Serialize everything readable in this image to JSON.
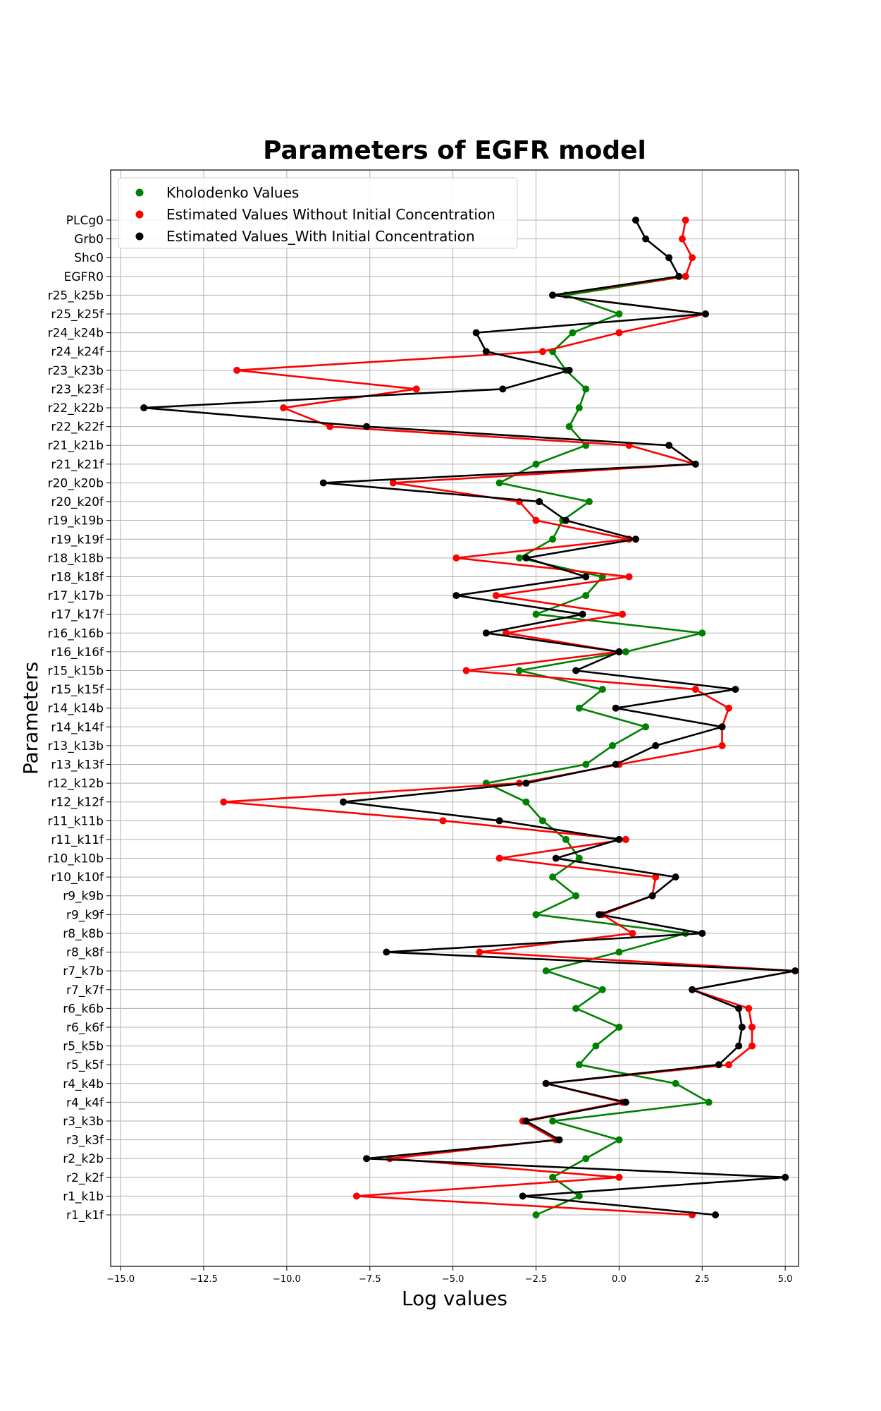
{
  "chart_data": {
    "type": "line",
    "title": "Parameters of EGFR model",
    "xlabel": "Log values",
    "ylabel": "Parameters",
    "xlim": [
      -15.3,
      5.4
    ],
    "xticks": [
      -15.0,
      -12.5,
      -10.0,
      -7.5,
      -5.0,
      -2.5,
      0.0,
      2.5,
      5.0
    ],
    "xtick_labels": [
      "−15.0",
      "−12.5",
      "−10.0",
      "−7.5",
      "−5.0",
      "−2.5",
      "0.0",
      "2.5",
      "5.0"
    ],
    "grid": true,
    "legend_position": "top-left",
    "categories": [
      "r1_k1f",
      "r1_k1b",
      "r2_k2f",
      "r2_k2b",
      "r3_k3f",
      "r3_k3b",
      "r4_k4f",
      "r4_k4b",
      "r5_k5f",
      "r5_k5b",
      "r6_k6f",
      "r6_k6b",
      "r7_k7f",
      "r7_k7b",
      "r8_k8f",
      "r8_k8b",
      "r9_k9f",
      "r9_k9b",
      "r10_k10f",
      "r10_k10b",
      "r11_k11f",
      "r11_k11b",
      "r12_k12f",
      "r12_k12b",
      "r13_k13f",
      "r13_k13b",
      "r14_k14f",
      "r14_k14b",
      "r15_k15f",
      "r15_k15b",
      "r16_k16f",
      "r16_k16b",
      "r17_k17f",
      "r17_k17b",
      "r18_k18f",
      "r18_k18b",
      "r19_k19f",
      "r19_k19b",
      "r20_k20f",
      "r20_k20b",
      "r21_k21f",
      "r21_k21b",
      "r22_k22f",
      "r22_k22b",
      "r23_k23f",
      "r23_k23b",
      "r24_k24f",
      "r24_k24b",
      "r25_k25f",
      "r25_k25b",
      "EGFR0",
      "Shc0",
      "Grb0",
      "PLCg0"
    ],
    "series": [
      {
        "name": "Kholodenko Values",
        "color": "#008000",
        "values": [
          -2.5,
          -1.2,
          -2.0,
          -1.0,
          0.0,
          -2.0,
          2.7,
          1.7,
          -1.2,
          -0.7,
          0.0,
          -1.3,
          -0.5,
          -2.2,
          0.0,
          2.0,
          -2.5,
          -1.3,
          -2.0,
          -1.2,
          -1.6,
          -2.3,
          -2.8,
          -4.0,
          -1.0,
          -0.2,
          0.8,
          -1.2,
          -0.5,
          -3.0,
          0.2,
          2.5,
          -2.5,
          -1.0,
          -0.5,
          -3.0,
          -2.0,
          -1.7,
          -0.9,
          -3.6,
          -2.5,
          -1.0,
          -1.5,
          -1.2,
          -1.0,
          -1.6,
          -2.0,
          -1.4,
          0.0,
          -1.6,
          2.0,
          null,
          null,
          null
        ]
      },
      {
        "name": "Estimated Values Without Initial Concentration",
        "color": "#ff0000",
        "values": [
          2.2,
          -7.9,
          0.0,
          -6.9,
          -1.9,
          -2.9,
          0.1,
          -2.2,
          3.3,
          4.0,
          4.0,
          3.9,
          2.2,
          5.3,
          -4.2,
          0.4,
          -0.5,
          1.0,
          1.1,
          -3.6,
          0.2,
          -5.3,
          -11.9,
          -3.0,
          0.0,
          3.1,
          3.1,
          3.3,
          2.3,
          -4.6,
          0.0,
          -3.4,
          0.1,
          -3.7,
          0.3,
          -4.9,
          0.3,
          -2.5,
          -3.0,
          -6.8,
          2.3,
          0.3,
          -8.7,
          -10.1,
          -6.1,
          -11.5,
          -2.3,
          0.0,
          2.6,
          -2.0,
          2.0,
          2.2,
          1.9,
          2.0
        ]
      },
      {
        "name": "Estimated Values_With Initial Concentration",
        "color": "#000000",
        "values": [
          2.9,
          -2.9,
          5.0,
          -7.6,
          -1.8,
          -2.8,
          0.2,
          -2.2,
          3.0,
          3.6,
          3.7,
          3.6,
          2.2,
          5.3,
          -7.0,
          2.5,
          -0.6,
          1.0,
          1.7,
          -1.9,
          0.0,
          -3.6,
          -8.3,
          -2.8,
          -0.1,
          1.1,
          3.1,
          -0.1,
          3.5,
          -1.3,
          0.0,
          -4.0,
          -1.1,
          -4.9,
          -1.0,
          -2.8,
          0.5,
          -1.6,
          -2.4,
          -8.9,
          2.3,
          1.5,
          -7.6,
          -14.3,
          -3.5,
          -1.5,
          -4.0,
          -4.3,
          2.6,
          -2.0,
          1.8,
          1.5,
          0.8,
          0.5
        ]
      }
    ]
  }
}
